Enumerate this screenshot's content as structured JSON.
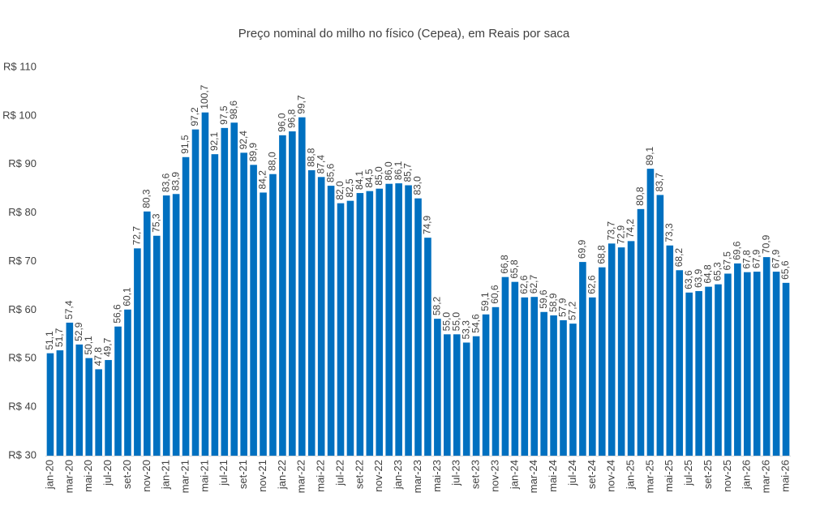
{
  "chart_data": {
    "type": "bar",
    "title": "Preço nominal do milho no físico (Cepea), em Reais por saca",
    "xlabel": "",
    "ylabel": "",
    "ylim": [
      30,
      110
    ],
    "grid": false,
    "show_legend": false,
    "y_ticks": [
      {
        "value": 110,
        "label": "R$ 110"
      },
      {
        "value": 100,
        "label": "R$ 100"
      },
      {
        "value": 90,
        "label": "R$ 90"
      },
      {
        "value": 80,
        "label": "R$ 80"
      },
      {
        "value": 70,
        "label": "R$ 70"
      },
      {
        "value": 60,
        "label": "R$ 60"
      },
      {
        "value": 50,
        "label": "R$ 50"
      },
      {
        "value": 40,
        "label": "R$ 40"
      },
      {
        "value": 30,
        "label": "R$ 30"
      }
    ],
    "x_tick_labels": [
      "jan-20",
      "mar-20",
      "mai-20",
      "jul-20",
      "set-20",
      "nov-20",
      "jan-21",
      "mar-21",
      "mai-21",
      "jul-21",
      "set-21",
      "nov-21",
      "jan-22",
      "mar-22",
      "mai-22",
      "jul-22",
      "set-22",
      "nov-22",
      "jan-23",
      "mar-23",
      "mai-23",
      "jul-23",
      "set-23",
      "nov-23",
      "jan-24",
      "mar-24",
      "mai-24",
      "jul-24",
      "set-24",
      "nov-24",
      "jan-25",
      "mar-25",
      "mai-25",
      "jul-25",
      "set-25",
      "nov-25",
      "jan-26",
      "mar-26",
      "mai-26"
    ],
    "values": [
      51.1,
      51.7,
      57.4,
      52.9,
      50.1,
      47.8,
      49.7,
      56.6,
      60.1,
      72.7,
      80.3,
      75.3,
      83.6,
      83.9,
      91.5,
      97.2,
      100.7,
      92.1,
      97.5,
      98.6,
      92.4,
      89.9,
      84.2,
      88.0,
      96.0,
      96.8,
      99.7,
      88.8,
      87.4,
      85.6,
      82.0,
      82.5,
      84.1,
      84.5,
      85.0,
      86.0,
      86.1,
      85.7,
      83.0,
      74.9,
      58.2,
      55.0,
      55.0,
      53.3,
      54.6,
      59.1,
      60.6,
      66.8,
      65.8,
      62.6,
      62.7,
      59.6,
      58.9,
      57.9,
      57.2,
      69.9,
      62.6,
      68.8,
      73.7,
      72.9,
      74.2,
      80.8,
      89.1,
      83.7,
      73.3,
      68.2,
      63.6,
      63.9,
      64.8,
      65.3,
      67.5,
      69.6,
      67.8,
      67.9,
      70.9,
      67.9,
      65.6
    ],
    "colors": {
      "bar": "#0070C0",
      "text": "#404040",
      "axis": "#D9D9D9"
    }
  }
}
